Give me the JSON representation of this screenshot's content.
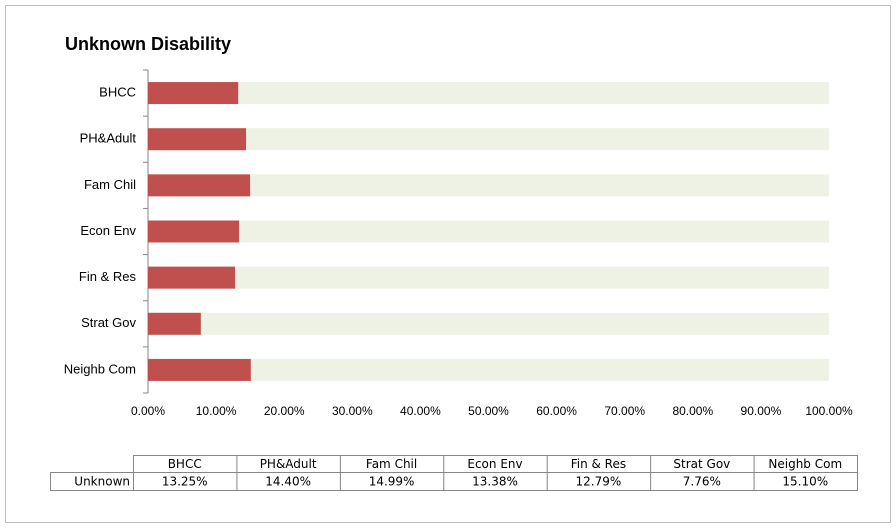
{
  "chart_data": {
    "type": "bar",
    "orientation": "horizontal",
    "title": "Unknown Disability",
    "categories": [
      "BHCC",
      "PH&Adult",
      "Fam Chil",
      "Econ Env",
      "Fin & Res",
      "Strat Gov",
      "Neighb Com"
    ],
    "series": [
      {
        "name": "Unknown",
        "color": "#c0504d",
        "values": [
          13.25,
          14.4,
          14.99,
          13.38,
          12.79,
          7.76,
          15.1
        ],
        "value_labels": [
          "13.25%",
          "14.40%",
          "14.99%",
          "13.38%",
          "12.79%",
          "7.76%",
          "15.10%"
        ]
      }
    ],
    "xlim": [
      0,
      100
    ],
    "xticks": [
      {
        "value": 0,
        "label": "0.00%"
      },
      {
        "value": 10,
        "label": "10.00%"
      },
      {
        "value": 20,
        "label": "20.00%"
      },
      {
        "value": 30,
        "label": "30.00%"
      },
      {
        "value": 40,
        "label": "40.00%"
      },
      {
        "value": 50,
        "label": "50.00%"
      },
      {
        "value": 60,
        "label": "60.00%"
      },
      {
        "value": 70,
        "label": "70.00%"
      },
      {
        "value": 80,
        "label": "80.00%"
      },
      {
        "value": 90,
        "label": "90.00%"
      },
      {
        "value": 100,
        "label": "100.00%"
      }
    ],
    "grid": false,
    "data_table": true
  }
}
